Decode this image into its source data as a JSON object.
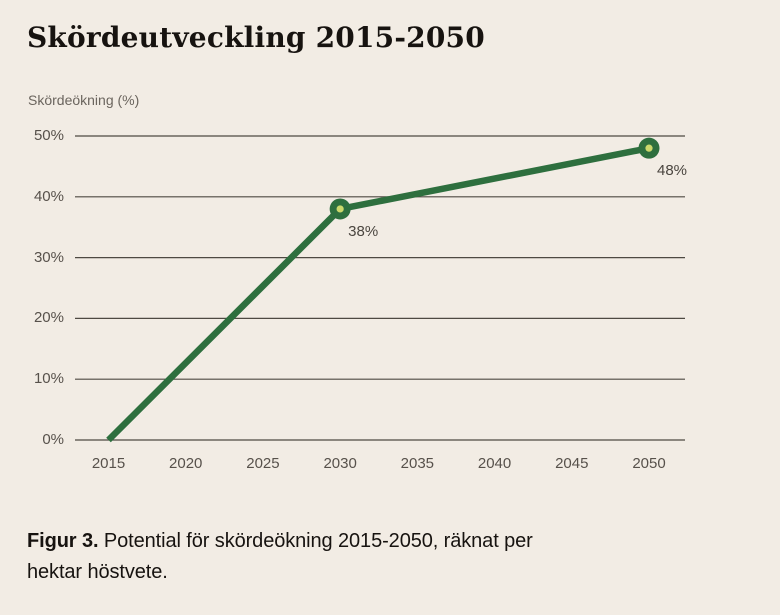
{
  "figure": {
    "title": "Skördeutveckling 2015-2050",
    "y_unit_label": "Skördeökning (%)"
  },
  "caption": {
    "label": "Figur 3.",
    "line1_rest": "Potential för skördeökning 2015-2050, räknat per",
    "line2": "hektar höstvete."
  },
  "chart_data": {
    "type": "line",
    "title": "Skördeutveckling 2015-2050",
    "xlabel": "",
    "ylabel": "Skördeökning (%)",
    "x": [
      2015,
      2030,
      2050
    ],
    "y": [
      0,
      38,
      48
    ],
    "point_labels": [
      "",
      "38%",
      "48%"
    ],
    "x_ticks": [
      2015,
      2020,
      2025,
      2030,
      2035,
      2040,
      2045,
      2050
    ],
    "y_ticks": [
      "0%",
      "10%",
      "20%",
      "30%",
      "40%",
      "50%"
    ],
    "y_tick_values": [
      0,
      10,
      20,
      30,
      40,
      50
    ],
    "xlim": [
      2015,
      2050
    ],
    "ylim": [
      0,
      50
    ],
    "grid": true,
    "legend": false,
    "colors": {
      "line": "#2e6f3e",
      "marker_outer": "#2e6f3e",
      "marker_inner": "#cbd86c",
      "gridline": "#4e4942",
      "axis_text": "#57514b",
      "background": "#f2ece4",
      "text": "#171310"
    }
  }
}
